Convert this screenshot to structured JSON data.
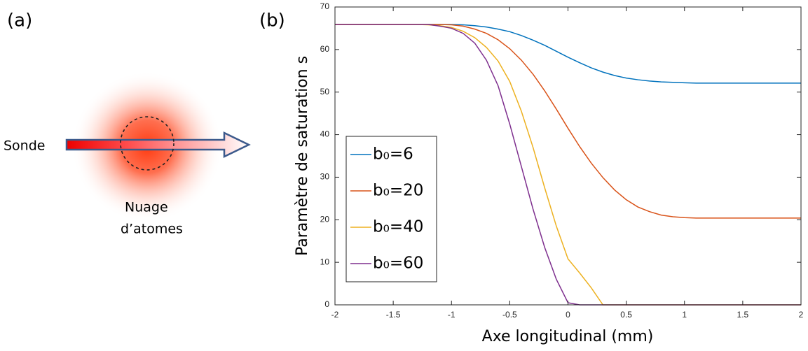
{
  "diagram": {
    "label": "(a)",
    "probe": "Sonde",
    "cloud_lines": [
      "Nuage",
      "d’atomes"
    ]
  },
  "chart_data": {
    "type": "line",
    "panel_label": "(b)",
    "x_label": "Axe longitudinal (mm)",
    "y_label": "Paramètre de saturation s",
    "x": [
      -2,
      -1.9,
      -1.8,
      -1.7,
      -1.6,
      -1.5,
      -1.4,
      -1.3,
      -1.2,
      -1.1,
      -1,
      -0.9,
      -0.8,
      -0.7,
      -0.6,
      -0.5,
      -0.4,
      -0.3,
      -0.2,
      -0.1,
      0,
      0.1,
      0.2,
      0.3,
      0.4,
      0.5,
      0.6,
      0.7,
      0.8,
      0.9,
      1,
      1.1,
      1.2,
      1.3,
      1.4,
      1.5,
      1.6,
      1.7,
      1.8,
      1.9,
      2
    ],
    "series": [
      {
        "name": "b₀=6",
        "color": "#0072BD",
        "values": [
          65.9,
          65.9,
          65.9,
          65.9,
          65.9,
          65.9,
          65.9,
          65.9,
          65.9,
          65.9,
          65.9,
          65.8,
          65.6,
          65.3,
          64.8,
          64.2,
          63.3,
          62.2,
          61.0,
          59.6,
          58.2,
          56.9,
          55.7,
          54.7,
          53.9,
          53.3,
          52.9,
          52.6,
          52.4,
          52.3,
          52.2,
          52.1,
          52.1,
          52.1,
          52.1,
          52.1,
          52.1,
          52.1,
          52.1,
          52.1,
          52.1
        ]
      },
      {
        "name": "b₀=20",
        "color": "#D95319",
        "values": [
          65.9,
          65.9,
          65.9,
          65.9,
          65.9,
          65.9,
          65.9,
          65.9,
          65.9,
          65.9,
          65.8,
          65.5,
          64.8,
          63.8,
          62.3,
          60.2,
          57.5,
          54.2,
          50.3,
          46.0,
          41.5,
          37.2,
          33.3,
          29.9,
          27.0,
          24.7,
          23.0,
          21.9,
          21.1,
          20.7,
          20.5,
          20.4,
          20.4,
          20.4,
          20.4,
          20.4,
          20.4,
          20.4,
          20.4,
          20.4,
          20.4
        ]
      },
      {
        "name": "b₀=40",
        "color": "#EDB120",
        "values": [
          65.9,
          65.9,
          65.9,
          65.9,
          65.9,
          65.9,
          65.9,
          65.9,
          65.8,
          65.6,
          65.2,
          64.3,
          62.8,
          60.5,
          57.3,
          52.5,
          45.5,
          37.0,
          27.5,
          18.5,
          10.8,
          7.5,
          4.0,
          0,
          0,
          0,
          0,
          0,
          0,
          0,
          0,
          0,
          0,
          0,
          0,
          0,
          0,
          0,
          0,
          0,
          0
        ]
      },
      {
        "name": "b₀=60",
        "color": "#7E2F8E",
        "values": [
          65.9,
          65.9,
          65.9,
          65.9,
          65.9,
          65.9,
          65.9,
          65.9,
          65.9,
          65.5,
          65.0,
          63.8,
          61.5,
          57.5,
          51.5,
          42.5,
          32.5,
          22.5,
          13.5,
          6.0,
          0.5,
          0,
          0,
          0,
          0,
          0,
          0,
          0,
          0,
          0,
          0,
          0,
          0,
          0,
          0,
          0,
          0,
          0,
          0,
          0,
          0
        ]
      }
    ],
    "xlim": [
      -2,
      2
    ],
    "ylim": [
      0,
      70
    ],
    "xticks": [
      -2,
      -1.5,
      -1,
      -0.5,
      0,
      0.5,
      1,
      1.5,
      2
    ],
    "yticks": [
      0,
      10,
      20,
      30,
      40,
      50,
      60,
      70
    ],
    "legend": "lower-left"
  }
}
